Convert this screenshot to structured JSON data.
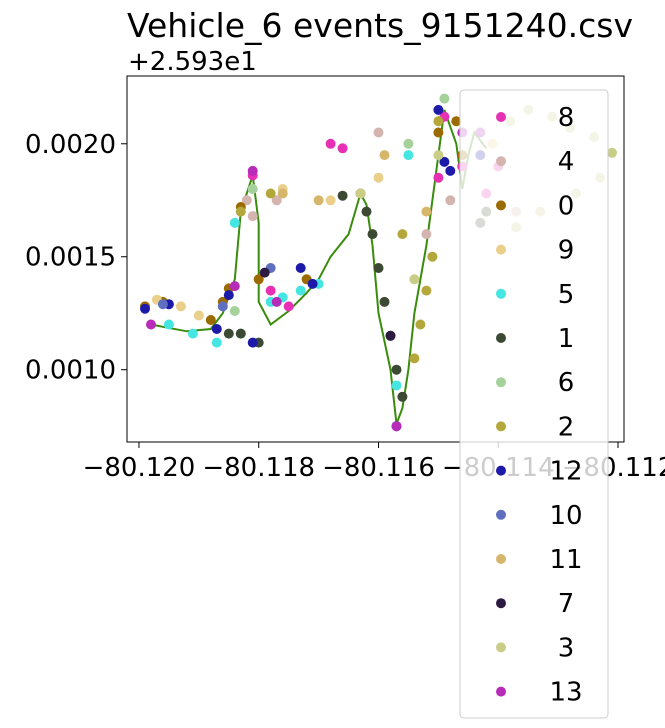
{
  "chart_data": {
    "type": "scatter",
    "title": "Vehicle_6 events_9151240.csv",
    "xlabel": "",
    "ylabel": "",
    "y_offset_label": "+2.593e1",
    "xlim": [
      -80.1202,
      -80.1119
    ],
    "ylim": [
      0.00068,
      0.0023
    ],
    "x_ticks": [
      -80.12,
      -80.118,
      -80.116,
      -80.114,
      -80.112
    ],
    "x_tick_labels": [
      "−80.120",
      "−80.118",
      "−80.116",
      "−80.114",
      "−80.112"
    ],
    "y_ticks": [
      0.001,
      0.0015,
      0.002
    ],
    "y_tick_labels": [
      "0.0010",
      "0.0015",
      "0.0020"
    ],
    "grid": false,
    "legend_position": "upper-right",
    "path_color": "#3a8c0c",
    "path": [
      [
        -80.1198,
        0.0012
      ],
      [
        -80.1196,
        0.00119
      ],
      [
        -80.1192,
        0.00117
      ],
      [
        -80.1188,
        0.00118
      ],
      [
        -80.1186,
        0.00125
      ],
      [
        -80.1184,
        0.0014
      ],
      [
        -80.1183,
        0.0017
      ],
      [
        -80.1181,
        0.00186
      ],
      [
        -80.118,
        0.00165
      ],
      [
        -80.118,
        0.0013
      ],
      [
        -80.1178,
        0.0012
      ],
      [
        -80.1175,
        0.00126
      ],
      [
        -80.1172,
        0.00134
      ],
      [
        -80.117,
        0.0014
      ],
      [
        -80.1168,
        0.0015
      ],
      [
        -80.1165,
        0.0016
      ],
      [
        -80.1163,
        0.00178
      ],
      [
        -80.1162,
        0.00173
      ],
      [
        -80.1161,
        0.00155
      ],
      [
        -80.116,
        0.00125
      ],
      [
        -80.1158,
        0.001
      ],
      [
        -80.1157,
        0.00076
      ],
      [
        -80.1156,
        0.00083
      ],
      [
        -80.1155,
        0.001
      ],
      [
        -80.1154,
        0.00125
      ],
      [
        -80.1152,
        0.00155
      ],
      [
        -80.1151,
        0.00175
      ],
      [
        -80.115,
        0.00195
      ],
      [
        -80.1149,
        0.00215
      ],
      [
        -80.1147,
        0.002
      ],
      [
        -80.1146,
        0.0018
      ],
      [
        -80.1145,
        0.00195
      ],
      [
        -80.1144,
        0.00205
      ],
      [
        -80.1142,
        0.00198
      ]
    ],
    "series": [
      {
        "name": "8",
        "color": "#e631b4",
        "points": [
          [
            -80.1181,
            0.00186
          ],
          [
            -80.1178,
            0.00135
          ],
          [
            -80.1175,
            0.00128
          ],
          [
            -80.1168,
            0.002
          ],
          [
            -80.1166,
            0.00198
          ],
          [
            -80.115,
            0.00185
          ],
          [
            -80.1149,
            0.00212
          ],
          [
            -80.1146,
            0.0019
          ],
          [
            -80.1142,
            0.00178
          ],
          [
            -80.114,
            0.0019
          ]
        ]
      },
      {
        "name": "4",
        "color": "#d4b4ae",
        "points": [
          [
            -80.1182,
            0.00175
          ],
          [
            -80.1181,
            0.00168
          ],
          [
            -80.1177,
            0.00175
          ],
          [
            -80.116,
            0.00205
          ],
          [
            -80.1152,
            0.0016
          ],
          [
            -80.1148,
            0.00175
          ],
          [
            -80.1137,
            0.0017
          ]
        ]
      },
      {
        "name": "0",
        "color": "#9b6a00",
        "points": [
          [
            -80.1199,
            0.00128
          ],
          [
            -80.1196,
            0.0013
          ],
          [
            -80.1188,
            0.00122
          ],
          [
            -80.1186,
            0.0013
          ],
          [
            -80.1185,
            0.00136
          ],
          [
            -80.1183,
            0.00172
          ],
          [
            -80.118,
            0.0014
          ],
          [
            -80.1172,
            0.0014
          ],
          [
            -80.115,
            0.00205
          ],
          [
            -80.1147,
            0.0021
          ],
          [
            -80.1146,
            0.00195
          ]
        ]
      },
      {
        "name": "9",
        "color": "#e9cf8a",
        "points": [
          [
            -80.1197,
            0.00131
          ],
          [
            -80.1193,
            0.00128
          ],
          [
            -80.119,
            0.00124
          ],
          [
            -80.1176,
            0.0018
          ],
          [
            -80.1168,
            0.00175
          ],
          [
            -80.116,
            0.00185
          ],
          [
            -80.1141,
            0.002
          ]
        ]
      },
      {
        "name": "5",
        "color": "#45e5e2",
        "points": [
          [
            -80.1195,
            0.0012
          ],
          [
            -80.1191,
            0.00116
          ],
          [
            -80.1187,
            0.00112
          ],
          [
            -80.1183,
            0.00116
          ],
          [
            -80.1178,
            0.0013
          ],
          [
            -80.1176,
            0.00132
          ],
          [
            -80.1173,
            0.00135
          ],
          [
            -80.117,
            0.00138
          ],
          [
            -80.1157,
            0.00093
          ],
          [
            -80.1155,
            0.00195
          ],
          [
            -80.1184,
            0.00165
          ]
        ]
      },
      {
        "name": "1",
        "color": "#3c4a33",
        "points": [
          [
            -80.1185,
            0.00116
          ],
          [
            -80.1183,
            0.00116
          ],
          [
            -80.118,
            0.00112
          ],
          [
            -80.1166,
            0.00177
          ],
          [
            -80.1163,
            0.00178
          ],
          [
            -80.1162,
            0.0017
          ],
          [
            -80.1161,
            0.0016
          ],
          [
            -80.116,
            0.00145
          ],
          [
            -80.1159,
            0.0013
          ],
          [
            -80.1158,
            0.00115
          ],
          [
            -80.1157,
            0.001
          ],
          [
            -80.1156,
            0.00088
          ],
          [
            -80.1143,
            0.00165
          ],
          [
            -80.1142,
            0.0017
          ]
        ]
      },
      {
        "name": "6",
        "color": "#a5d19b",
        "points": [
          [
            -80.1184,
            0.00126
          ],
          [
            -80.1181,
            0.0018
          ],
          [
            -80.1155,
            0.002
          ],
          [
            -80.1149,
            0.0022
          ]
        ]
      },
      {
        "name": "2",
        "color": "#b4a83c",
        "points": [
          [
            -80.1183,
            0.0017
          ],
          [
            -80.1178,
            0.00178
          ],
          [
            -80.1163,
            0.00178
          ],
          [
            -80.1156,
            0.0016
          ],
          [
            -80.1154,
            0.00105
          ],
          [
            -80.1153,
            0.0012
          ],
          [
            -80.1152,
            0.00135
          ],
          [
            -80.1151,
            0.0015
          ],
          [
            -80.115,
            0.0021
          ]
        ]
      },
      {
        "name": "12",
        "color": "#1d1aa9",
        "points": [
          [
            -80.1199,
            0.00127
          ],
          [
            -80.1195,
            0.00129
          ],
          [
            -80.1187,
            0.00118
          ],
          [
            -80.1185,
            0.00133
          ],
          [
            -80.1181,
            0.00112
          ],
          [
            -80.1173,
            0.00145
          ],
          [
            -80.1171,
            0.00138
          ],
          [
            -80.1157,
            0.00075
          ],
          [
            -80.115,
            0.00215
          ],
          [
            -80.1149,
            0.00192
          ],
          [
            -80.1148,
            0.00188
          ],
          [
            -80.1143,
            0.00195
          ]
        ]
      },
      {
        "name": "10",
        "color": "#5e6fc0",
        "points": [
          [
            -80.1196,
            0.00129
          ],
          [
            -80.1186,
            0.00128
          ],
          [
            -80.1178,
            0.00145
          ]
        ]
      },
      {
        "name": "11",
        "color": "#d6b66a",
        "points": [
          [
            -80.1176,
            0.00178
          ],
          [
            -80.117,
            0.00175
          ],
          [
            -80.1159,
            0.00195
          ],
          [
            -80.1152,
            0.0017
          ]
        ]
      },
      {
        "name": "7",
        "color": "#2d1a42",
        "points": [
          [
            -80.1179,
            0.00143
          ],
          [
            -80.1158,
            0.00115
          ]
        ]
      },
      {
        "name": "3",
        "color": "#c9cd86",
        "points": [
          [
            -80.1163,
            0.00178
          ],
          [
            -80.1154,
            0.0014
          ],
          [
            -80.115,
            0.00195
          ],
          [
            -80.1138,
            0.0021
          ],
          [
            -80.1135,
            0.00215
          ],
          [
            -80.1131,
            0.00212
          ],
          [
            -80.1128,
            0.00207
          ],
          [
            -80.1124,
            0.00203
          ],
          [
            -80.1121,
            0.00196
          ],
          [
            -80.1123,
            0.00185
          ],
          [
            -80.1127,
            0.00178
          ],
          [
            -80.1133,
            0.0017
          ],
          [
            -80.1137,
            0.00163
          ]
        ]
      },
      {
        "name": "13",
        "color": "#b62bb8",
        "points": [
          [
            -80.1198,
            0.0012
          ],
          [
            -80.1184,
            0.00137
          ],
          [
            -80.1181,
            0.00188
          ],
          [
            -80.1177,
            0.0013
          ],
          [
            -80.1157,
            0.00075
          ],
          [
            -80.1146,
            0.00205
          ],
          [
            -80.1143,
            0.00205
          ]
        ]
      }
    ]
  }
}
